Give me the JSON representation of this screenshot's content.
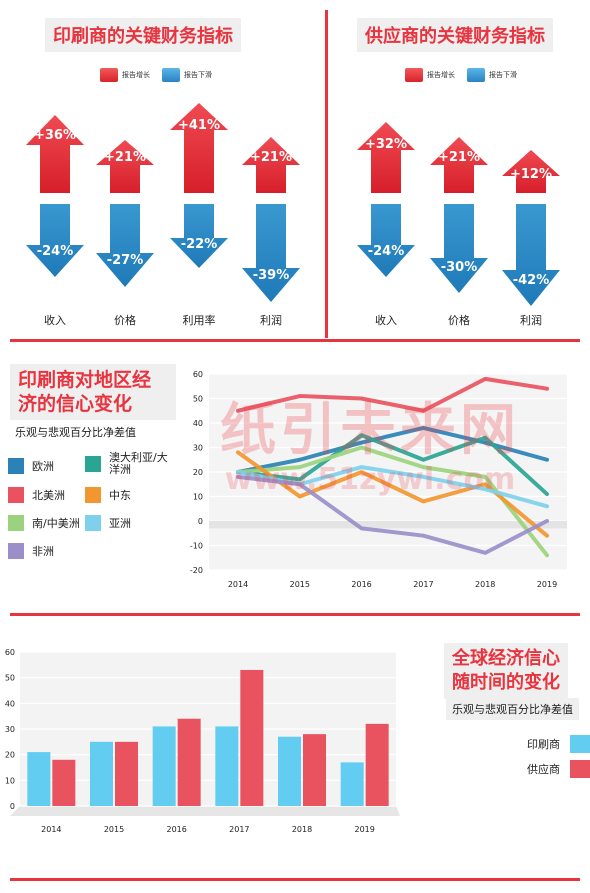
{
  "top_left": {
    "title": "印刷商的关键财务指标",
    "legend_up": "报告增长",
    "legend_down": "报告下滑",
    "items": [
      {
        "label": "收入",
        "up": "+36%",
        "down": "-24%"
      },
      {
        "label": "价格",
        "up": "+21%",
        "down": "-27%"
      },
      {
        "label": "利用率",
        "up": "+41%",
        "down": "-22%"
      },
      {
        "label": "利润",
        "up": "+21%",
        "down": "-39%"
      }
    ]
  },
  "top_right": {
    "title": "供应商的关键财务指标",
    "legend_up": "报告增长",
    "legend_down": "报告下滑",
    "items": [
      {
        "label": "收入",
        "up": "+32%",
        "down": "-24%"
      },
      {
        "label": "价格",
        "up": "+21%",
        "down": "-30%"
      },
      {
        "label": "利润",
        "up": "+12%",
        "down": "-42%"
      }
    ]
  },
  "middle": {
    "title_line1": "印刷商对地区经",
    "title_line2": "济的信心变化",
    "subtitle": "乐观与悲观百分比净差值",
    "legend": [
      {
        "name": "欧洲",
        "color": "#2a82b6"
      },
      {
        "name": "澳大利亚/大洋洲",
        "color": "#2aa594"
      },
      {
        "name": "北美洲",
        "color": "#e8535f"
      },
      {
        "name": "中东",
        "color": "#f2962f"
      },
      {
        "name": "南/中美洲",
        "color": "#9bd27d"
      },
      {
        "name": "亚洲",
        "color": "#7fd0ec"
      },
      {
        "name": "非洲",
        "color": "#9b8fc9"
      }
    ]
  },
  "bottom": {
    "title_line1": "全球经济信心",
    "title_line2": "随时间的变化",
    "subtitle": "乐观与悲观百分比净差值",
    "legend": [
      {
        "name": "印刷商",
        "color": "#62cdf1"
      },
      {
        "name": "供应商",
        "color": "#e8535f"
      }
    ]
  },
  "watermark": {
    "line1": "纸引未来网",
    "line2": "www.51zywl.com"
  },
  "chart_data": [
    {
      "type": "line",
      "x": [
        "2014",
        "2015",
        "2016",
        "2017",
        "2018",
        "2019"
      ],
      "ylim": [
        -20,
        60
      ],
      "yticks": [
        -20,
        -10,
        0,
        10,
        20,
        30,
        40,
        50,
        60
      ],
      "series": [
        {
          "name": "北美洲",
          "color": "#e8535f",
          "values": [
            45,
            51,
            50,
            45,
            58,
            54
          ]
        },
        {
          "name": "欧洲",
          "color": "#2a82b6",
          "values": [
            20,
            25,
            32,
            38,
            32,
            25
          ]
        },
        {
          "name": "澳大利亚/大洋洲",
          "color": "#2aa594",
          "values": [
            20,
            17,
            35,
            25,
            34,
            11
          ]
        },
        {
          "name": "南/中美洲",
          "color": "#9bd27d",
          "values": [
            20,
            22,
            30,
            22,
            18,
            -14
          ]
        },
        {
          "name": "中东",
          "color": "#f2962f",
          "values": [
            28,
            10,
            20,
            8,
            15,
            -6
          ]
        },
        {
          "name": "亚洲",
          "color": "#7fd0ec",
          "values": [
            20,
            15,
            22,
            18,
            13,
            6
          ]
        },
        {
          "name": "非洲",
          "color": "#9b8fc9",
          "values": [
            18,
            15,
            -3,
            -6,
            -13,
            0
          ]
        }
      ]
    },
    {
      "type": "bar",
      "categories": [
        "2014",
        "2015",
        "2016",
        "2017",
        "2018",
        "2019"
      ],
      "ylim": [
        0,
        60
      ],
      "yticks": [
        0,
        10,
        20,
        30,
        40,
        50,
        60
      ],
      "series": [
        {
          "name": "印刷商",
          "color": "#62cdf1",
          "values": [
            21,
            25,
            31,
            31,
            27,
            17
          ]
        },
        {
          "name": "供应商",
          "color": "#e8535f",
          "values": [
            18,
            25,
            34,
            53,
            28,
            32
          ]
        }
      ]
    }
  ]
}
